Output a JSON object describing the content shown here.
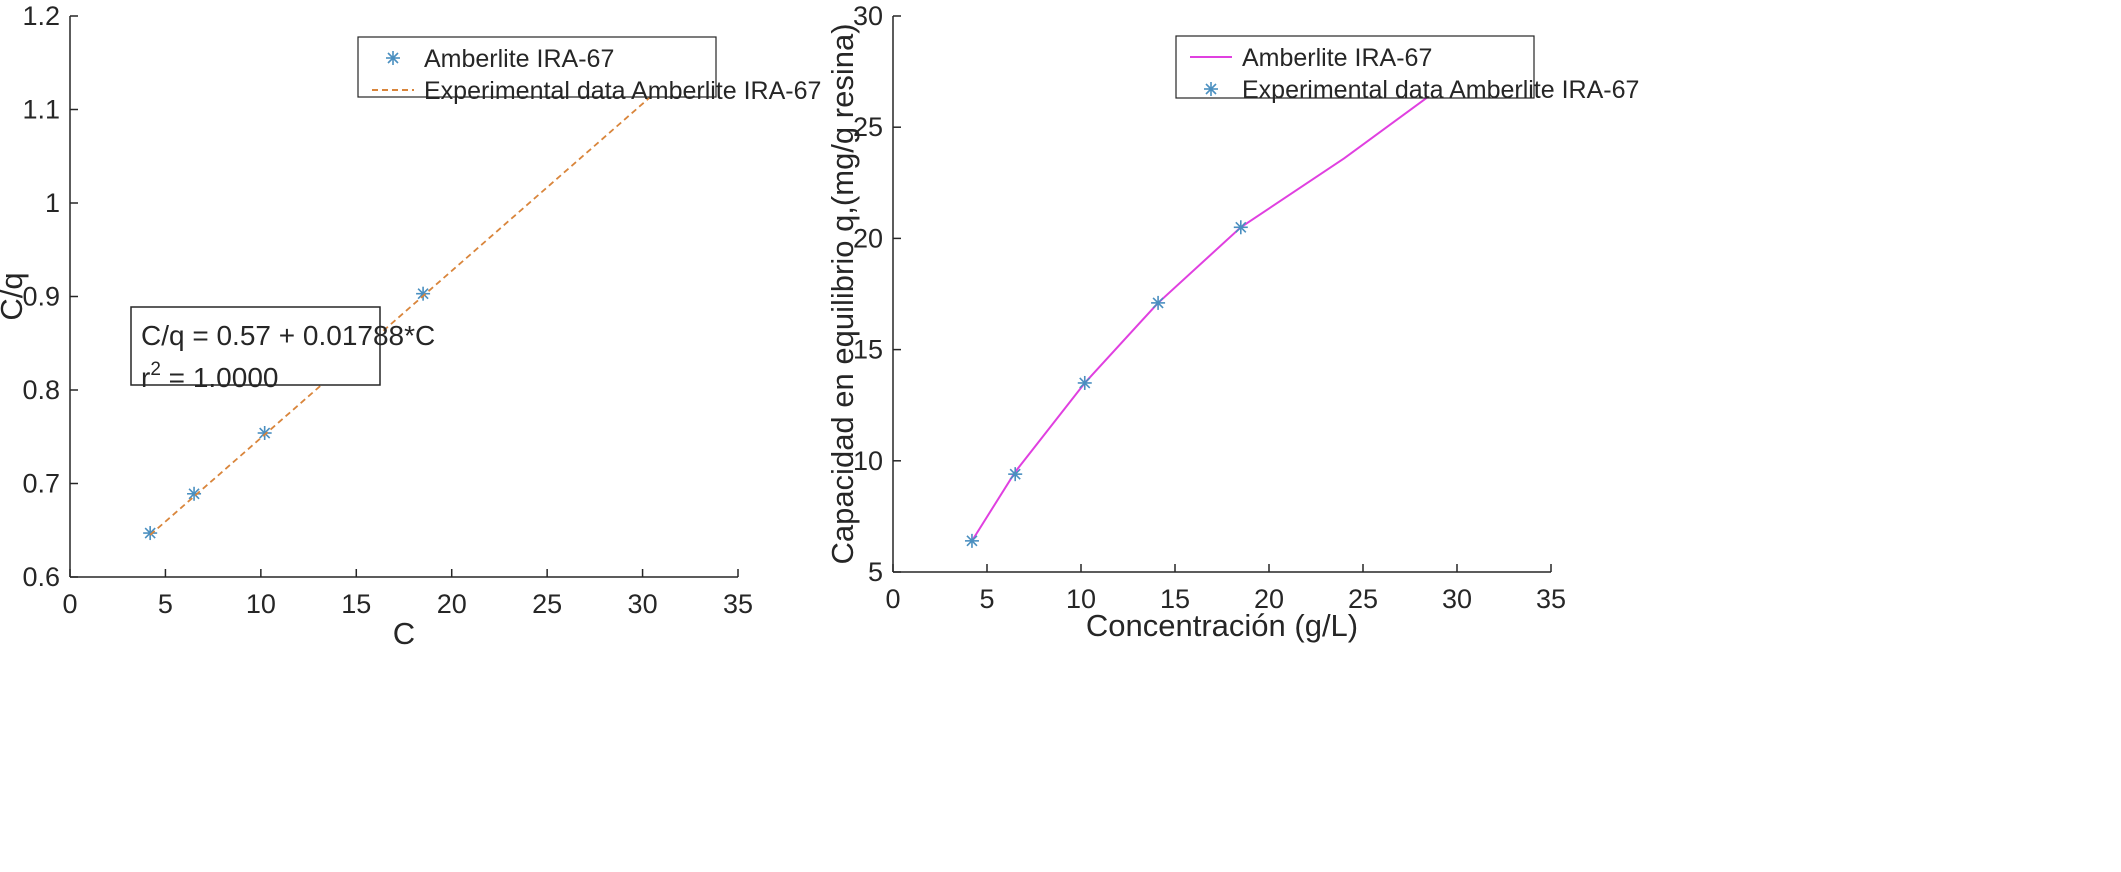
{
  "chart_data": [
    {
      "type": "scatter",
      "xlabel": "C",
      "ylabel": "C/q",
      "xlim": [
        0,
        35
      ],
      "ylim": [
        0.6,
        1.2
      ],
      "x_ticks": [
        "0",
        "5",
        "10",
        "15",
        "20",
        "25",
        "30",
        "35"
      ],
      "y_ticks": [
        "0.6",
        "0.7",
        "0.8",
        "0.9",
        "1",
        "1.1",
        "1.2"
      ],
      "grid": false,
      "legend_position": "top-right",
      "series": [
        {
          "name": "Amberlite IRA-67",
          "style": "markers",
          "marker": "asterisk",
          "color": "#4a8fc0",
          "x": [
            4.2,
            6.5,
            10.2,
            14.1,
            18.5
          ],
          "y": [
            0.647,
            0.689,
            0.754,
            0.824,
            0.903
          ]
        },
        {
          "name": "Experimental data Amberlite IRA-67",
          "style": "dashed-line",
          "color": "#d9853b",
          "x": [
            4.2,
            31.0
          ],
          "y": [
            0.645,
            1.124
          ]
        }
      ],
      "annotation": {
        "equation": "C/q = 0.57 + 0.01788*C",
        "r_prefix": "r",
        "r_sup": "2",
        "r_value": " = 1.0000"
      }
    },
    {
      "type": "line",
      "xlabel": "Concentración (g/L)",
      "ylabel": "Capacidad en equilibrio q,(mg/g resina)",
      "xlim": [
        0,
        35
      ],
      "ylim": [
        5,
        30
      ],
      "x_ticks": [
        "0",
        "5",
        "10",
        "15",
        "20",
        "25",
        "30",
        "35"
      ],
      "y_ticks": [
        "5",
        "10",
        "15",
        "20",
        "25",
        "30"
      ],
      "grid": false,
      "legend_position": "top-right",
      "series": [
        {
          "name": "Amberlite IRA-67",
          "style": "line",
          "color": "#e040e0",
          "x": [
            4.2,
            6.5,
            10.2,
            14.1,
            18.5,
            24,
            29
          ],
          "y": [
            6.4,
            9.5,
            13.5,
            17.1,
            20.5,
            23.6,
            26.7
          ]
        },
        {
          "name": "Experimental data Amberlite IRA-67",
          "style": "markers",
          "marker": "asterisk",
          "color": "#4a8fc0",
          "x": [
            4.2,
            6.5,
            10.2,
            14.1,
            18.5
          ],
          "y": [
            6.4,
            9.4,
            13.5,
            17.1,
            20.5
          ]
        }
      ]
    }
  ]
}
